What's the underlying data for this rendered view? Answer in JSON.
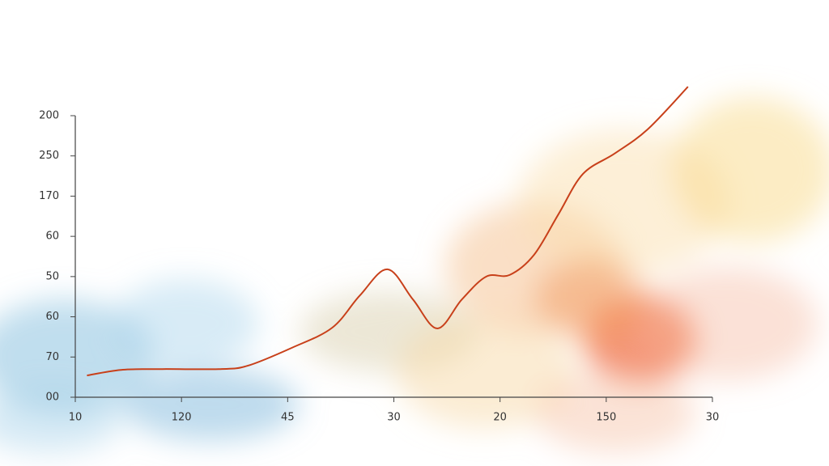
{
  "chart_data": {
    "type": "line",
    "x": [
      0.11,
      0.43,
      0.82,
      1.35,
      1.62,
      2.04,
      2.42,
      2.68,
      2.94,
      3.18,
      3.41,
      3.64,
      3.87,
      4.09,
      4.32,
      4.55,
      4.78,
      5.08,
      5.39,
      5.77
    ],
    "series": [
      {
        "color": "#c8401a",
        "values": [
          0.54,
          0.68,
          0.7,
          0.7,
          0.78,
          1.23,
          1.73,
          2.53,
          3.18,
          2.43,
          1.71,
          2.43,
          3.0,
          3.04,
          3.54,
          4.55,
          5.55,
          6.06,
          6.66,
          7.72
        ]
      }
    ],
    "xlim": [
      0,
      6
    ],
    "xticks": [
      {
        "value": 0,
        "label": "10"
      },
      {
        "value": 1,
        "label": "120"
      },
      {
        "value": 2,
        "label": "45"
      },
      {
        "value": 3,
        "label": "30"
      },
      {
        "value": 4,
        "label": "20"
      },
      {
        "value": 5,
        "label": "150"
      },
      {
        "value": 6,
        "label": "30"
      }
    ],
    "ylim": [
      0,
      7
    ],
    "yticks": [
      {
        "value": 0,
        "label": "00"
      },
      {
        "value": 1,
        "label": "70"
      },
      {
        "value": 2,
        "label": "60"
      },
      {
        "value": 3,
        "label": "50"
      },
      {
        "value": 4,
        "label": "60"
      },
      {
        "value": 5,
        "label": "170"
      },
      {
        "value": 6,
        "label": "250"
      },
      {
        "value": 7,
        "label": "200"
      }
    ]
  }
}
